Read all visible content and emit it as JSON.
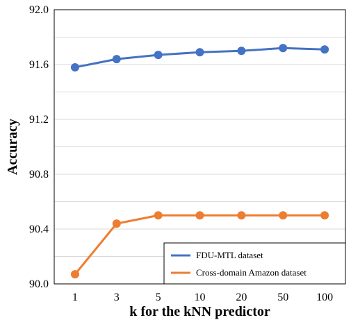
{
  "chart_data": {
    "type": "line",
    "categories": [
      "1",
      "3",
      "5",
      "10",
      "20",
      "50",
      "100"
    ],
    "xlabel": "k for the kNN predictor",
    "ylabel": "Accuracy",
    "ylim": [
      90.0,
      92.0
    ],
    "yticks": [
      "90.0",
      "90.4",
      "90.8",
      "91.2",
      "91.6",
      "92.0"
    ],
    "grid": true,
    "legend_position": "bottom-right",
    "series": [
      {
        "name": "FDU-MTL dataset",
        "color": "#4472C4",
        "values": [
          91.58,
          91.64,
          91.67,
          91.69,
          91.7,
          91.72,
          91.71
        ]
      },
      {
        "name": "Cross-domain Amazon dataset",
        "color": "#ED7D31",
        "values": [
          90.07,
          90.44,
          90.5,
          90.5,
          90.5,
          90.5,
          90.5
        ]
      }
    ]
  }
}
